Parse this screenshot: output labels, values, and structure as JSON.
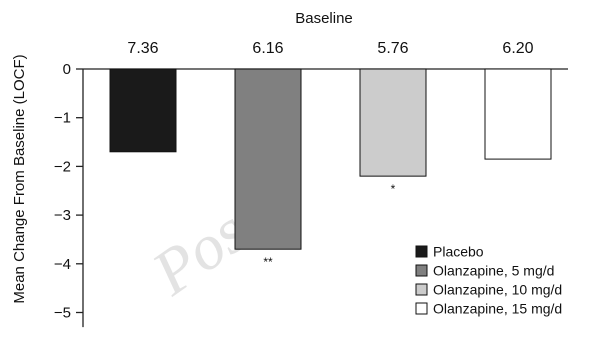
{
  "chart_data": {
    "type": "bar",
    "top_header": "Baseline",
    "categories": [
      "Placebo",
      "Olanzapine, 5 mg/d",
      "Olanzapine, 10 mg/d",
      "Olanzapine, 15 mg/d"
    ],
    "baseline_values": [
      "7.36",
      "6.16",
      "5.76",
      "6.20"
    ],
    "values": [
      -1.7,
      -3.7,
      -2.2,
      -1.85
    ],
    "significance": [
      "",
      "**",
      "*",
      ""
    ],
    "colors": [
      "#1a1a1a",
      "#808080",
      "#cccccc",
      "#ffffff"
    ],
    "ylabel": "Mean Change From Baseline (LOCF)",
    "ylim": [
      -5.3,
      0
    ],
    "yticks": [
      0,
      -1,
      -2,
      -3,
      -4,
      -5
    ],
    "ytick_labels": [
      "0",
      "−1",
      "−2",
      "−3",
      "−4",
      "−5"
    ],
    "legend": {
      "position": "bottom-right",
      "entries": [
        "Placebo",
        "Olanzapine, 5 mg/d",
        "Olanzapine, 10 mg/d",
        "Olanzapine, 15 mg/d"
      ]
    },
    "grid": false
  }
}
